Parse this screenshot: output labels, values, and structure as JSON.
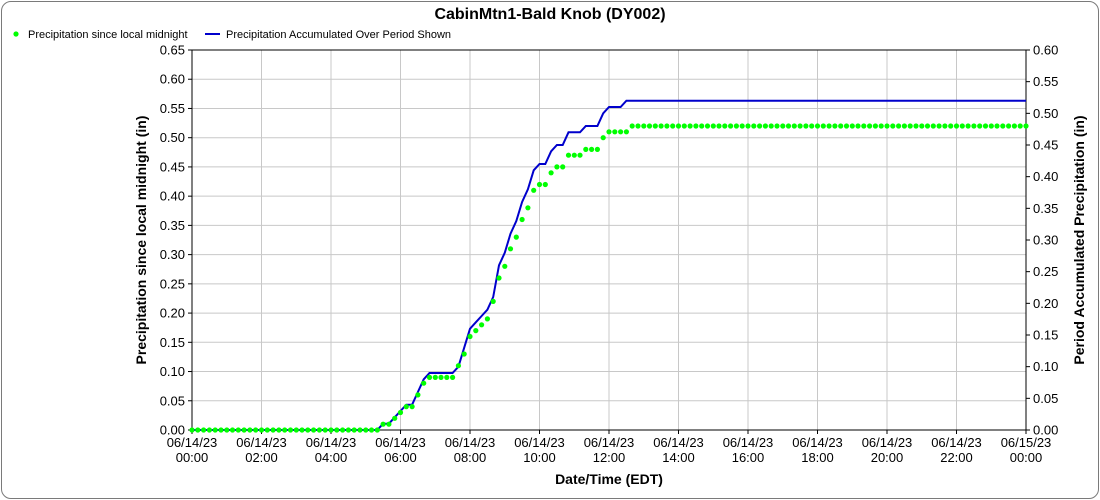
{
  "chart_data": {
    "type": "line",
    "title": "CabinMtn1-Bald Knob (DY002)",
    "xlabel": "Date/Time (EDT)",
    "ylabel_left": "Precipitation since local midnight (in)",
    "ylabel_right": "Period Accumulated Precipitation (in)",
    "x_ticks": [
      {
        "date": "06/14/23",
        "time": "00:00"
      },
      {
        "date": "06/14/23",
        "time": "02:00"
      },
      {
        "date": "06/14/23",
        "time": "04:00"
      },
      {
        "date": "06/14/23",
        "time": "06:00"
      },
      {
        "date": "06/14/23",
        "time": "08:00"
      },
      {
        "date": "06/14/23",
        "time": "10:00"
      },
      {
        "date": "06/14/23",
        "time": "12:00"
      },
      {
        "date": "06/14/23",
        "time": "14:00"
      },
      {
        "date": "06/14/23",
        "time": "16:00"
      },
      {
        "date": "06/14/23",
        "time": "18:00"
      },
      {
        "date": "06/14/23",
        "time": "20:00"
      },
      {
        "date": "06/14/23",
        "time": "22:00"
      },
      {
        "date": "06/15/23",
        "time": "00:00"
      }
    ],
    "xlim": [
      "06/14/23 00:00",
      "06/15/23 00:00"
    ],
    "ylim_left": [
      0,
      0.65
    ],
    "ylim_right": [
      0,
      0.6
    ],
    "y_ticks_left": [
      "0.00",
      "0.05",
      "0.10",
      "0.15",
      "0.20",
      "0.25",
      "0.30",
      "0.35",
      "0.40",
      "0.45",
      "0.50",
      "0.55",
      "0.60",
      "0.65"
    ],
    "y_ticks_right": [
      "0.00",
      "0.05",
      "0.10",
      "0.15",
      "0.20",
      "0.25",
      "0.30",
      "0.35",
      "0.40",
      "0.45",
      "0.50",
      "0.55",
      "0.60"
    ],
    "grid": true,
    "legend": "top-left",
    "series": [
      {
        "name": "Precipitation since local midnight",
        "axis": "left",
        "style": "dots",
        "color": "#00ff00",
        "points": [
          [
            "06/14/23 00:00",
            0
          ],
          [
            "06/14/23 05:20",
            0
          ],
          [
            "06/14/23 05:30",
            0.01
          ],
          [
            "06/14/23 05:40",
            0.01
          ],
          [
            "06/14/23 05:50",
            0.02
          ],
          [
            "06/14/23 06:00",
            0.03
          ],
          [
            "06/14/23 06:10",
            0.04
          ],
          [
            "06/14/23 06:20",
            0.04
          ],
          [
            "06/14/23 06:30",
            0.06
          ],
          [
            "06/14/23 06:40",
            0.08
          ],
          [
            "06/14/23 06:50",
            0.09
          ],
          [
            "06/14/23 07:00",
            0.09
          ],
          [
            "06/14/23 07:10",
            0.09
          ],
          [
            "06/14/23 07:20",
            0.09
          ],
          [
            "06/14/23 07:30",
            0.09
          ],
          [
            "06/14/23 07:40",
            0.11
          ],
          [
            "06/14/23 07:50",
            0.13
          ],
          [
            "06/14/23 08:00",
            0.16
          ],
          [
            "06/14/23 08:10",
            0.17
          ],
          [
            "06/14/23 08:20",
            0.18
          ],
          [
            "06/14/23 08:30",
            0.19
          ],
          [
            "06/14/23 08:40",
            0.22
          ],
          [
            "06/14/23 08:50",
            0.26
          ],
          [
            "06/14/23 09:00",
            0.28
          ],
          [
            "06/14/23 09:10",
            0.31
          ],
          [
            "06/14/23 09:20",
            0.33
          ],
          [
            "06/14/23 09:30",
            0.36
          ],
          [
            "06/14/23 09:40",
            0.38
          ],
          [
            "06/14/23 09:50",
            0.41
          ],
          [
            "06/14/23 10:00",
            0.42
          ],
          [
            "06/14/23 10:10",
            0.42
          ],
          [
            "06/14/23 10:20",
            0.44
          ],
          [
            "06/14/23 10:30",
            0.45
          ],
          [
            "06/14/23 10:40",
            0.45
          ],
          [
            "06/14/23 10:50",
            0.47
          ],
          [
            "06/14/23 11:00",
            0.47
          ],
          [
            "06/14/23 11:10",
            0.47
          ],
          [
            "06/14/23 11:20",
            0.48
          ],
          [
            "06/14/23 11:30",
            0.48
          ],
          [
            "06/14/23 11:40",
            0.48
          ],
          [
            "06/14/23 11:50",
            0.5
          ],
          [
            "06/14/23 12:00",
            0.51
          ],
          [
            "06/14/23 12:10",
            0.51
          ],
          [
            "06/14/23 12:20",
            0.51
          ],
          [
            "06/14/23 12:30",
            0.51
          ],
          [
            "06/14/23 12:40",
            0.52
          ],
          [
            "06/15/23 00:00",
            0.52
          ]
        ]
      },
      {
        "name": "Precipitation Accumulated Over Period Shown",
        "axis": "right",
        "style": "line",
        "color": "#0000cc",
        "points": [
          [
            "06/14/23 00:00",
            0
          ],
          [
            "06/14/23 05:20",
            0
          ],
          [
            "06/14/23 05:30",
            0.01
          ],
          [
            "06/14/23 05:40",
            0.01
          ],
          [
            "06/14/23 05:50",
            0.02
          ],
          [
            "06/14/23 06:00",
            0.03
          ],
          [
            "06/14/23 06:10",
            0.04
          ],
          [
            "06/14/23 06:20",
            0.04
          ],
          [
            "06/14/23 06:30",
            0.06
          ],
          [
            "06/14/23 06:40",
            0.08
          ],
          [
            "06/14/23 06:50",
            0.09
          ],
          [
            "06/14/23 07:00",
            0.09
          ],
          [
            "06/14/23 07:10",
            0.09
          ],
          [
            "06/14/23 07:20",
            0.09
          ],
          [
            "06/14/23 07:30",
            0.09
          ],
          [
            "06/14/23 07:40",
            0.1
          ],
          [
            "06/14/23 07:50",
            0.13
          ],
          [
            "06/14/23 08:00",
            0.16
          ],
          [
            "06/14/23 08:10",
            0.17
          ],
          [
            "06/14/23 08:20",
            0.18
          ],
          [
            "06/14/23 08:30",
            0.19
          ],
          [
            "06/14/23 08:40",
            0.21
          ],
          [
            "06/14/23 08:50",
            0.26
          ],
          [
            "06/14/23 09:00",
            0.28
          ],
          [
            "06/14/23 09:10",
            0.31
          ],
          [
            "06/14/23 09:20",
            0.33
          ],
          [
            "06/14/23 09:30",
            0.36
          ],
          [
            "06/14/23 09:40",
            0.38
          ],
          [
            "06/14/23 09:50",
            0.41
          ],
          [
            "06/14/23 10:00",
            0.42
          ],
          [
            "06/14/23 10:10",
            0.42
          ],
          [
            "06/14/23 10:20",
            0.44
          ],
          [
            "06/14/23 10:30",
            0.45
          ],
          [
            "06/14/23 10:40",
            0.45
          ],
          [
            "06/14/23 10:50",
            0.47
          ],
          [
            "06/14/23 11:00",
            0.47
          ],
          [
            "06/14/23 11:10",
            0.47
          ],
          [
            "06/14/23 11:20",
            0.48
          ],
          [
            "06/14/23 11:30",
            0.48
          ],
          [
            "06/14/23 11:40",
            0.48
          ],
          [
            "06/14/23 11:50",
            0.5
          ],
          [
            "06/14/23 12:00",
            0.51
          ],
          [
            "06/14/23 12:10",
            0.51
          ],
          [
            "06/14/23 12:20",
            0.51
          ],
          [
            "06/14/23 12:30",
            0.52
          ],
          [
            "06/15/23 00:00",
            0.52
          ]
        ]
      }
    ]
  }
}
